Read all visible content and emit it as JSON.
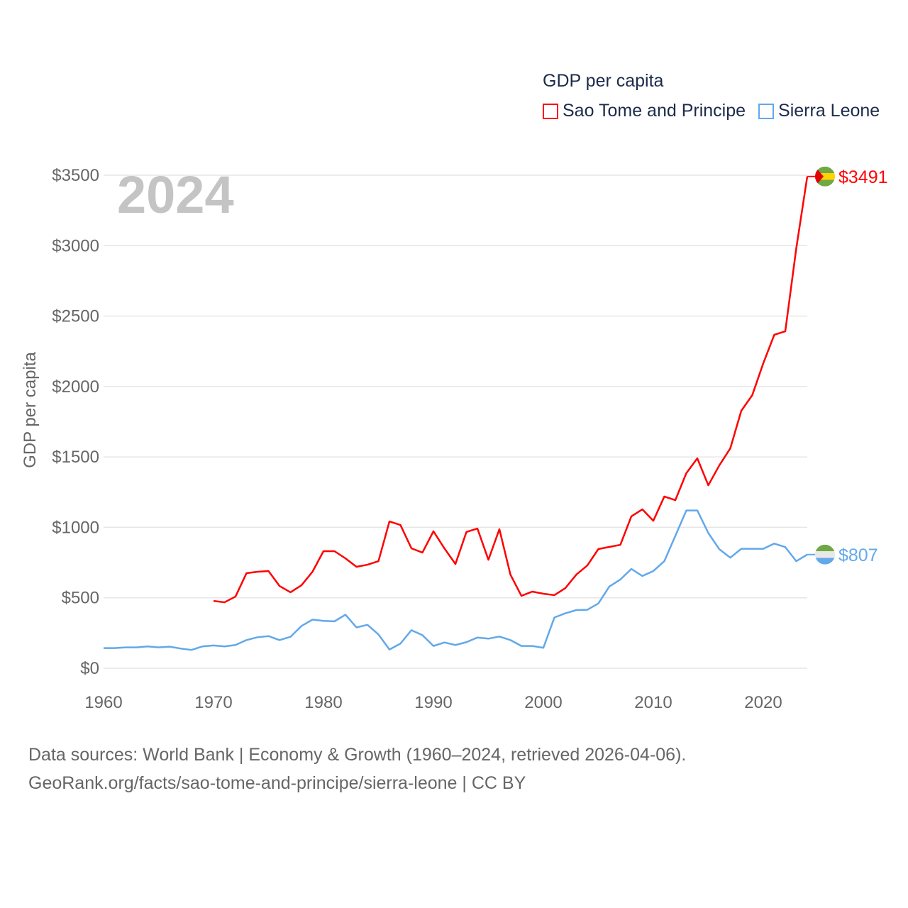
{
  "chart_data": {
    "type": "line",
    "title": "GDP per capita",
    "ylabel": "GDP per capita",
    "xlabel": "",
    "year_label": "2024",
    "xlim": [
      1960,
      2024
    ],
    "ylim": [
      0,
      3500
    ],
    "x_ticks": [
      1960,
      1970,
      1980,
      1990,
      2000,
      2010,
      2020
    ],
    "y_ticks": [
      0,
      500,
      1000,
      1500,
      2000,
      2500,
      3000,
      3500
    ],
    "y_tick_labels": [
      "$0",
      "$500",
      "$1000",
      "$1500",
      "$2000",
      "$2500",
      "$3000",
      "$3500"
    ],
    "grid": true,
    "legend_placement": "top-right",
    "series": [
      {
        "name": "Sao Tome and Principe",
        "color": "#ff0000",
        "start_year": 1970,
        "end_label": "$3491",
        "values": [
          478,
          468,
          509,
          675,
          685,
          690,
          584,
          539,
          589,
          685,
          831,
          831,
          780,
          720,
          735,
          760,
          1042,
          1017,
          851,
          821,
          972,
          851,
          740,
          967,
          992,
          770,
          987,
          665,
          514,
          544,
          529,
          519,
          569,
          665,
          730,
          846,
          861,
          876,
          1078,
          1128,
          1047,
          1219,
          1193,
          1385,
          1490,
          1299,
          1440,
          1561,
          1828,
          1939,
          2165,
          2367,
          2392,
          2981,
          3491
        ]
      },
      {
        "name": "Sierra Leone",
        "color": "#62a8ea",
        "start_year": 1960,
        "end_label": "$807",
        "values": [
          143,
          143,
          148,
          148,
          155,
          148,
          153,
          140,
          130,
          155,
          162,
          155,
          165,
          200,
          220,
          228,
          200,
          223,
          300,
          345,
          336,
          333,
          380,
          290,
          308,
          240,
          133,
          175,
          270,
          235,
          158,
          183,
          165,
          185,
          218,
          210,
          225,
          200,
          158,
          158,
          145,
          360,
          390,
          413,
          415,
          460,
          580,
          630,
          705,
          655,
          690,
          760,
          940,
          1120,
          1120,
          960,
          845,
          785,
          848,
          848,
          848,
          885,
          860,
          760,
          807
        ]
      }
    ]
  },
  "footer": {
    "line1": "Data sources: World Bank | Economy & Growth (1960–2024, retrieved 2026-04-06).",
    "line2": "GeoRank.org/facts/sao-tome-and-principe/sierra-leone | CC BY"
  }
}
